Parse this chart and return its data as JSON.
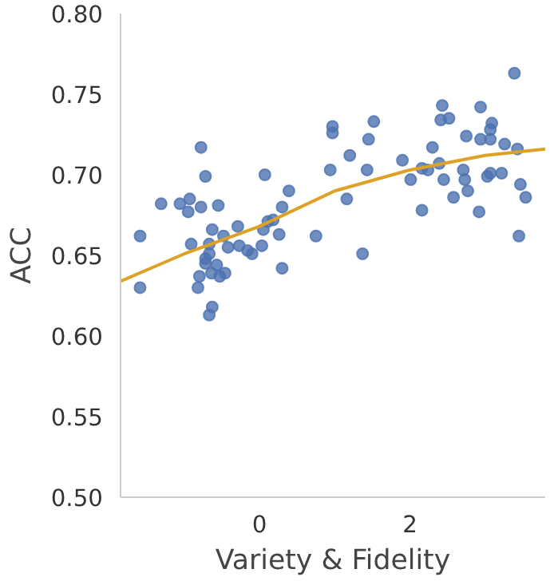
{
  "chart_data": {
    "type": "scatter",
    "xlabel": "Variety & Fidelity",
    "ylabel": "ACC",
    "xlim": [
      -1.85,
      3.8
    ],
    "xticks": [
      0,
      2
    ],
    "ylim": [
      0.5,
      0.8
    ],
    "yticks": [
      {
        "value": 0.5,
        "label": "0.50"
      },
      {
        "value": 0.55,
        "label": "0.55"
      },
      {
        "value": 0.6,
        "label": "0.60"
      },
      {
        "value": 0.65,
        "label": "0.65"
      },
      {
        "value": 0.7,
        "label": "0.70"
      },
      {
        "value": 0.75,
        "label": "0.75"
      },
      {
        "value": 0.8,
        "label": "0.80"
      }
    ],
    "grid": false,
    "marker": "circle",
    "series": [
      {
        "color": "#4c72b0",
        "x": [
          -1.59,
          -1.59,
          -1.31,
          -1.06,
          -0.93,
          -0.95,
          -0.78,
          -0.78,
          -0.72,
          -0.55,
          -0.91,
          -0.63,
          -0.67,
          -0.67,
          -0.72,
          -0.72,
          -0.57,
          -0.8,
          -0.64,
          -0.53,
          -0.46,
          -0.82,
          -0.63,
          -0.67,
          -0.48,
          -0.42,
          -0.29,
          -0.27,
          -0.16,
          -0.1,
          0.03,
          0.05,
          0.11,
          0.18,
          0.26,
          0.3,
          0.39,
          0.3,
          0.07,
          0.75,
          0.94,
          0.97,
          0.97,
          1.2,
          1.52,
          1.45,
          1.43,
          1.16,
          1.37,
          1.9,
          2.01,
          2.16,
          2.3,
          2.16,
          2.24,
          2.39,
          2.45,
          2.43,
          2.41,
          2.52,
          2.58,
          2.71,
          2.73,
          2.77,
          2.75,
          2.92,
          2.94,
          2.94,
          3.07,
          3.07,
          3.09,
          3.03,
          3.07,
          3.22,
          3.26,
          3.43,
          3.39,
          3.47,
          3.54,
          3.45
        ],
        "values": [
          0.662,
          0.63,
          0.682,
          0.682,
          0.685,
          0.677,
          0.68,
          0.717,
          0.699,
          0.681,
          0.657,
          0.666,
          0.657,
          0.651,
          0.648,
          0.645,
          0.644,
          0.637,
          0.639,
          0.637,
          0.639,
          0.63,
          0.618,
          0.613,
          0.662,
          0.655,
          0.668,
          0.656,
          0.653,
          0.651,
          0.656,
          0.666,
          0.671,
          0.672,
          0.663,
          0.68,
          0.69,
          0.642,
          0.7,
          0.662,
          0.703,
          0.73,
          0.726,
          0.712,
          0.733,
          0.722,
          0.703,
          0.685,
          0.651,
          0.709,
          0.697,
          0.678,
          0.717,
          0.704,
          0.703,
          0.707,
          0.697,
          0.743,
          0.734,
          0.735,
          0.686,
          0.703,
          0.697,
          0.69,
          0.724,
          0.677,
          0.742,
          0.722,
          0.722,
          0.728,
          0.732,
          0.699,
          0.701,
          0.701,
          0.719,
          0.716,
          0.763,
          0.694,
          0.686,
          0.662
        ]
      },
      {
        "type": "line",
        "marker": "none",
        "color": "#dda225",
        "x": [
          -1.85,
          -1,
          0,
          1,
          2,
          3,
          3.8
        ],
        "values": [
          0.634,
          0.651,
          0.668,
          0.69,
          0.703,
          0.712,
          0.716
        ]
      }
    ]
  }
}
